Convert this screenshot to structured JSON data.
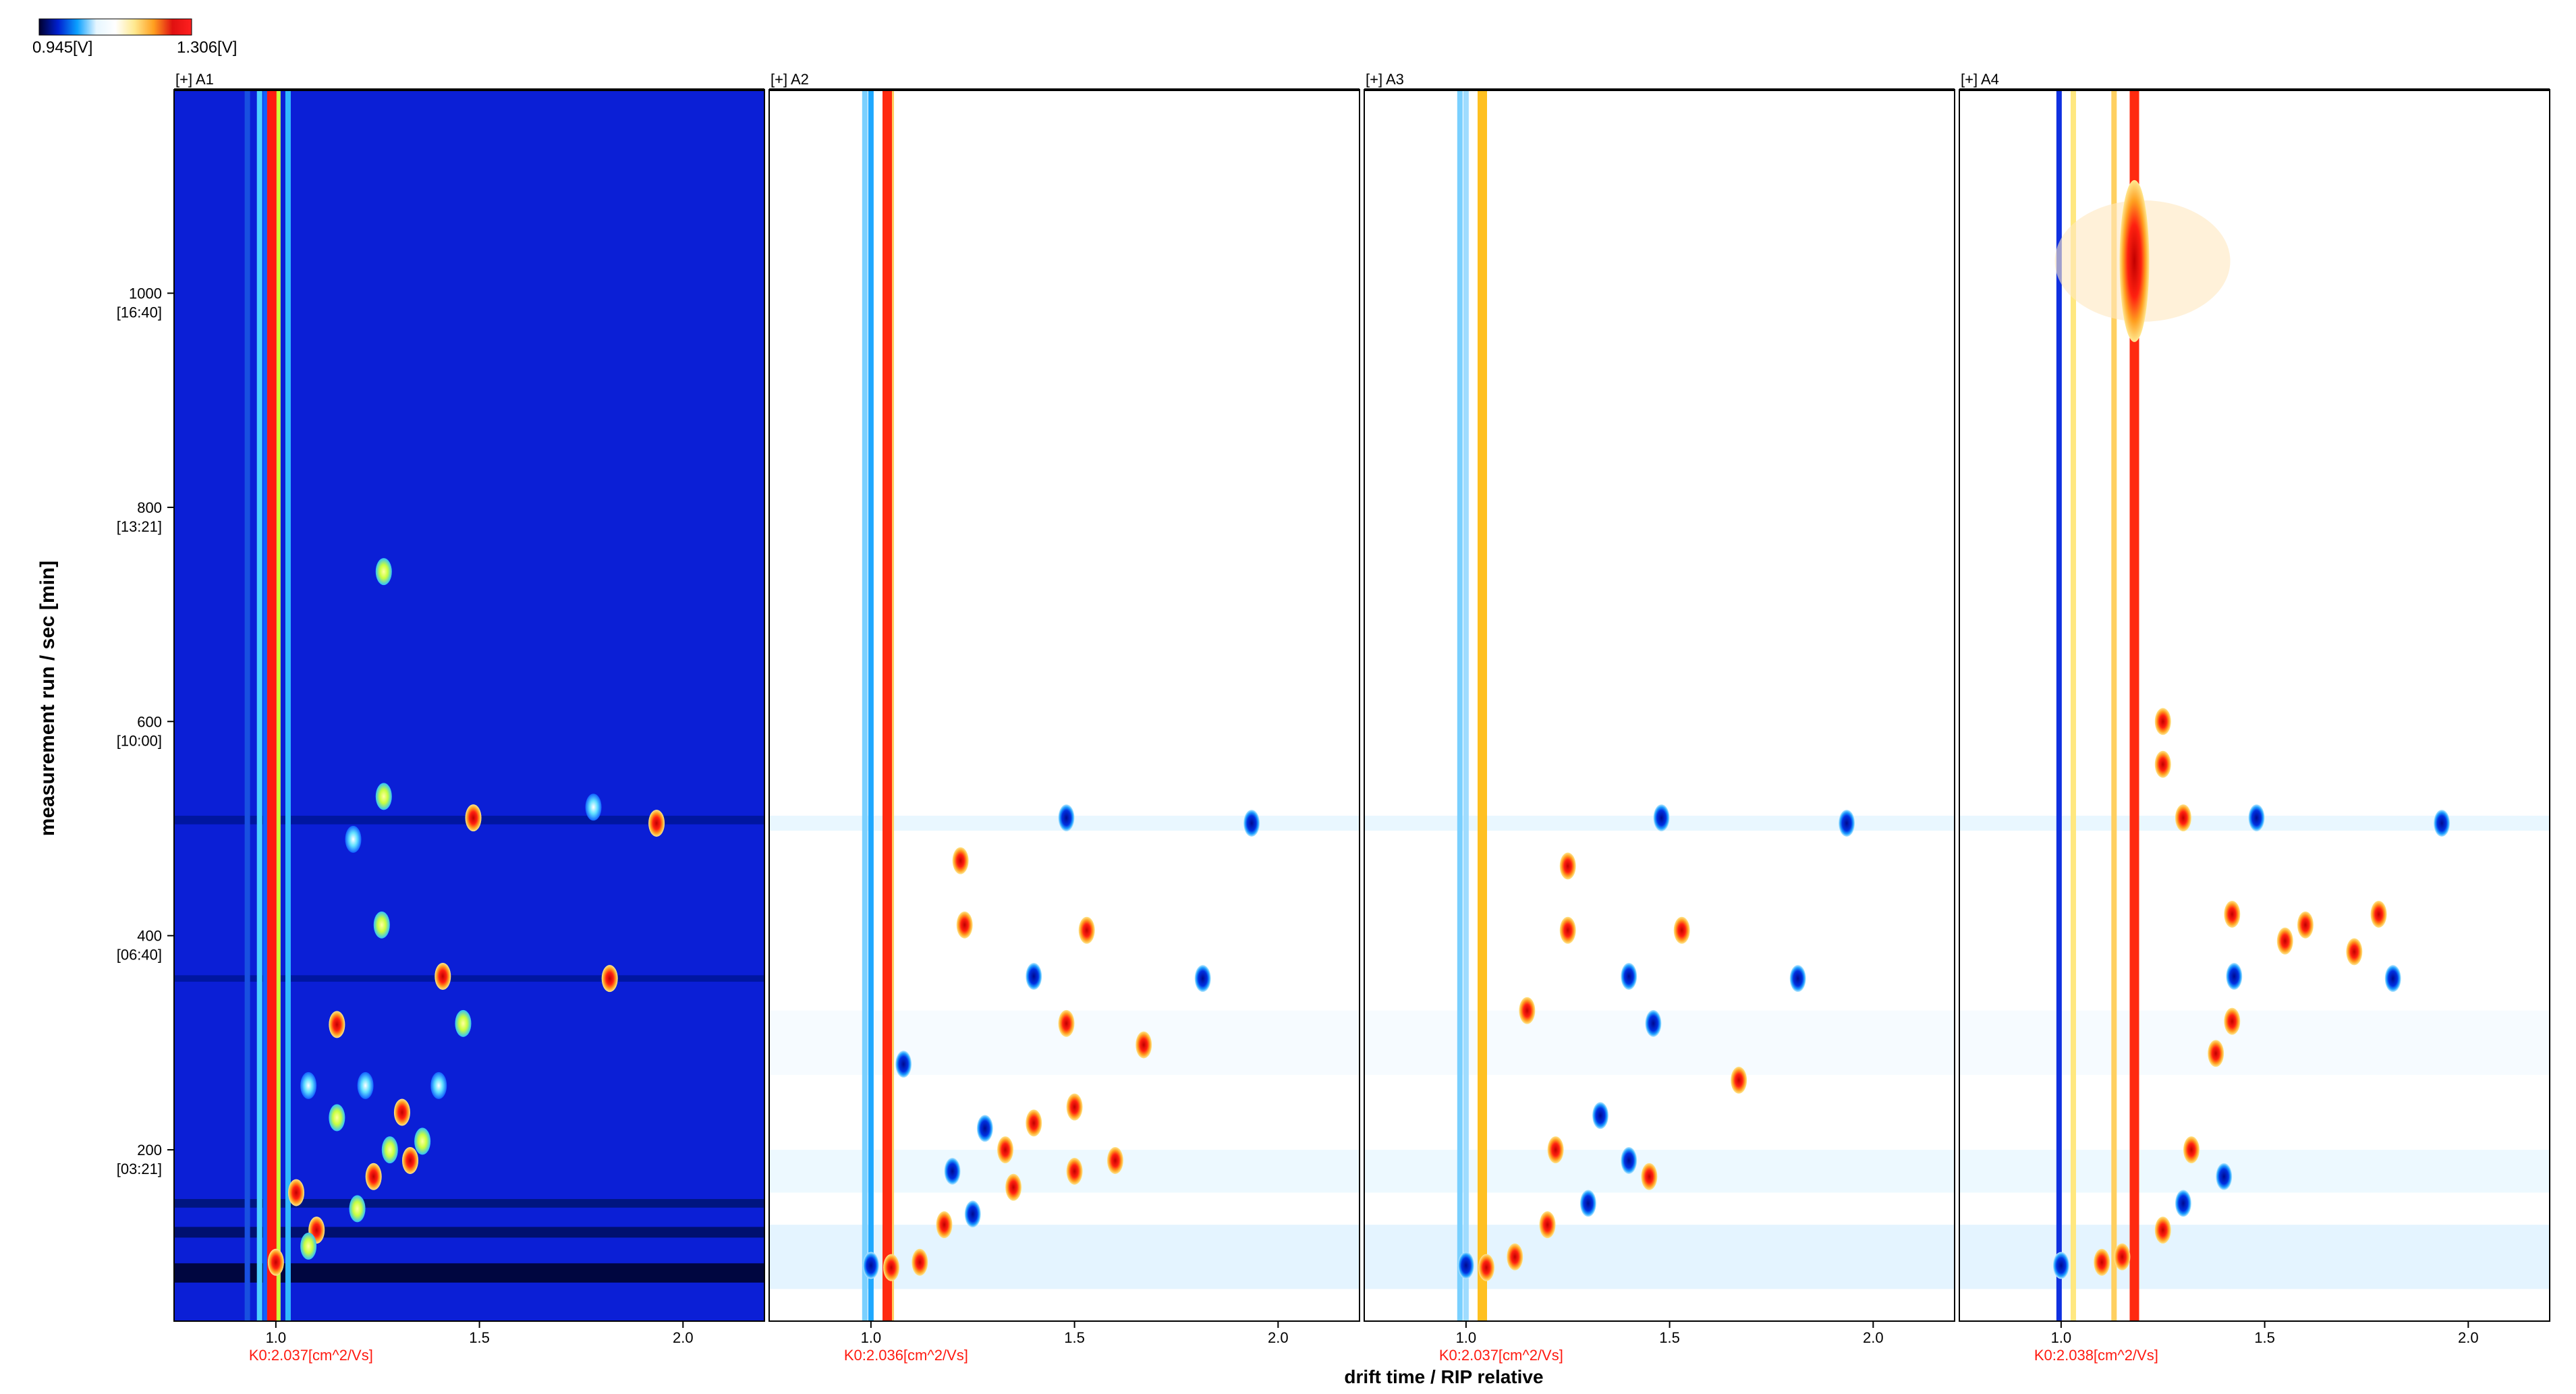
{
  "colorbar": {
    "min_label": "0.945[V]",
    "max_label": "1.306[V]",
    "stops": [
      "#00002e",
      "#0020d0",
      "#0aa0ff",
      "#e6f6ff",
      "#ffffff",
      "#ffe990",
      "#ffa020",
      "#e01010",
      "#ff2020"
    ]
  },
  "chart_data": {
    "type": "heatmap",
    "xlabel": "drift time / RIP relative",
    "ylabel": "measurement run / sec [min]",
    "xlim": [
      0.75,
      2.2
    ],
    "ylim": [
      40,
      1190
    ],
    "x_ticks": [
      {
        "value": 1.0,
        "label": "1.0"
      },
      {
        "value": 1.5,
        "label": "1.5"
      },
      {
        "value": 2.0,
        "label": "2.0"
      }
    ],
    "y_ticks": [
      {
        "value": 200,
        "label": "200",
        "sub": "[03:21]"
      },
      {
        "value": 400,
        "label": "400",
        "sub": "[06:40]"
      },
      {
        "value": 600,
        "label": "600",
        "sub": "[10:00]"
      },
      {
        "value": 800,
        "label": "800",
        "sub": "[13:21]"
      },
      {
        "value": 1000,
        "label": "1000",
        "sub": "[16:40]"
      }
    ],
    "panels": [
      {
        "name": "[+] A1",
        "k0_label": "K0:2.037[cm^2/Vs]",
        "mode": "raw",
        "background": "#0b1fd6",
        "rip_x": 0.99,
        "rip_color": "#ff1a10",
        "lines": [
          {
            "x": 0.96,
            "color": "#4fd0ff"
          },
          {
            "x": 0.975,
            "color": "#1060ff"
          },
          {
            "x": 1.005,
            "color": "#c8ff40"
          },
          {
            "x": 1.03,
            "color": "#30b8ff"
          },
          {
            "x": 0.93,
            "color": "#1850e0"
          }
        ],
        "bands": [
          {
            "y": 85,
            "h": 18,
            "color": "#000640"
          },
          {
            "y": 123,
            "h": 10,
            "color": "#001070"
          },
          {
            "y": 150,
            "h": 8,
            "color": "#001580"
          },
          {
            "y": 508,
            "h": 8,
            "color": "#0016a0"
          },
          {
            "y": 360,
            "h": 6,
            "color": "#0016a0"
          }
        ],
        "spots": [
          {
            "x": 1.935,
            "y": 505,
            "c": "red"
          },
          {
            "x": 1.485,
            "y": 510,
            "c": "red"
          },
          {
            "x": 1.265,
            "y": 530,
            "c": "yellow"
          },
          {
            "x": 1.78,
            "y": 520,
            "c": "cyan"
          },
          {
            "x": 1.82,
            "y": 360,
            "c": "red"
          },
          {
            "x": 1.41,
            "y": 362,
            "c": "red"
          },
          {
            "x": 1.46,
            "y": 318,
            "c": "yellow"
          },
          {
            "x": 1.15,
            "y": 317,
            "c": "red"
          },
          {
            "x": 1.265,
            "y": 740,
            "c": "yellow"
          },
          {
            "x": 1.26,
            "y": 410,
            "c": "yellow"
          },
          {
            "x": 1.19,
            "y": 490,
            "c": "cyan"
          },
          {
            "x": 1.31,
            "y": 235,
            "c": "red"
          },
          {
            "x": 1.28,
            "y": 200,
            "c": "yellow"
          },
          {
            "x": 1.33,
            "y": 190,
            "c": "red"
          },
          {
            "x": 1.36,
            "y": 208,
            "c": "yellow"
          },
          {
            "x": 1.24,
            "y": 175,
            "c": "red"
          },
          {
            "x": 1.2,
            "y": 145,
            "c": "yellow"
          },
          {
            "x": 1.1,
            "y": 125,
            "c": "red"
          },
          {
            "x": 1.08,
            "y": 110,
            "c": "yellow"
          },
          {
            "x": 1.0,
            "y": 95,
            "c": "red"
          },
          {
            "x": 1.15,
            "y": 230,
            "c": "yellow"
          },
          {
            "x": 1.05,
            "y": 160,
            "c": "red"
          },
          {
            "x": 1.08,
            "y": 260,
            "c": "cyan"
          },
          {
            "x": 1.22,
            "y": 260,
            "c": "cyan"
          },
          {
            "x": 1.4,
            "y": 260,
            "c": "cyan"
          }
        ]
      },
      {
        "name": "[+] A2",
        "k0_label": "K0:2.036[cm^2/Vs]",
        "mode": "diff",
        "background": "#ffffff",
        "rip_x": 1.04,
        "rip_color": "#ff2a10",
        "lines": [
          {
            "x": 1.0,
            "color": "#1ea8ff"
          },
          {
            "x": 0.985,
            "color": "#7ad0ff"
          },
          {
            "x": 1.05,
            "color": "#ffd060"
          }
        ],
        "bands": [],
        "spots": [
          {
            "x": 1.935,
            "y": 505,
            "c": "blue"
          },
          {
            "x": 1.48,
            "y": 510,
            "c": "blue"
          },
          {
            "x": 1.815,
            "y": 360,
            "c": "blue"
          },
          {
            "x": 1.4,
            "y": 362,
            "c": "blue"
          },
          {
            "x": 1.53,
            "y": 405,
            "c": "red"
          },
          {
            "x": 1.23,
            "y": 410,
            "c": "red"
          },
          {
            "x": 1.67,
            "y": 298,
            "c": "red"
          },
          {
            "x": 1.48,
            "y": 318,
            "c": "red"
          },
          {
            "x": 1.5,
            "y": 240,
            "c": "red"
          },
          {
            "x": 1.4,
            "y": 225,
            "c": "red"
          },
          {
            "x": 1.6,
            "y": 190,
            "c": "red"
          },
          {
            "x": 1.5,
            "y": 180,
            "c": "red"
          },
          {
            "x": 1.35,
            "y": 165,
            "c": "red"
          },
          {
            "x": 1.25,
            "y": 140,
            "c": "blue"
          },
          {
            "x": 1.18,
            "y": 130,
            "c": "red"
          },
          {
            "x": 1.12,
            "y": 95,
            "c": "red"
          },
          {
            "x": 1.05,
            "y": 90,
            "c": "red"
          },
          {
            "x": 1.0,
            "y": 92,
            "c": "blue"
          },
          {
            "x": 1.08,
            "y": 280,
            "c": "blue"
          },
          {
            "x": 1.2,
            "y": 180,
            "c": "blue"
          },
          {
            "x": 1.28,
            "y": 220,
            "c": "blue"
          },
          {
            "x": 1.33,
            "y": 200,
            "c": "red"
          },
          {
            "x": 1.22,
            "y": 470,
            "c": "red"
          }
        ]
      },
      {
        "name": "[+] A3",
        "k0_label": "K0:2.037[cm^2/Vs]",
        "mode": "diff",
        "background": "#ffffff",
        "rip_x": 1.04,
        "rip_color": "#ffc020",
        "lines": [
          {
            "x": 0.985,
            "color": "#7ad0ff"
          },
          {
            "x": 1.0,
            "color": "#9fdcff"
          }
        ],
        "bands": [],
        "spots": [
          {
            "x": 1.935,
            "y": 505,
            "c": "blue"
          },
          {
            "x": 1.48,
            "y": 510,
            "c": "blue"
          },
          {
            "x": 1.815,
            "y": 360,
            "c": "blue"
          },
          {
            "x": 1.4,
            "y": 362,
            "c": "blue"
          },
          {
            "x": 1.53,
            "y": 405,
            "c": "red"
          },
          {
            "x": 1.25,
            "y": 405,
            "c": "red"
          },
          {
            "x": 1.25,
            "y": 465,
            "c": "red"
          },
          {
            "x": 1.67,
            "y": 265,
            "c": "red"
          },
          {
            "x": 1.46,
            "y": 318,
            "c": "blue"
          },
          {
            "x": 1.33,
            "y": 232,
            "c": "blue"
          },
          {
            "x": 1.4,
            "y": 190,
            "c": "blue"
          },
          {
            "x": 1.45,
            "y": 175,
            "c": "red"
          },
          {
            "x": 1.3,
            "y": 150,
            "c": "blue"
          },
          {
            "x": 1.2,
            "y": 130,
            "c": "red"
          },
          {
            "x": 1.12,
            "y": 100,
            "c": "red"
          },
          {
            "x": 1.05,
            "y": 90,
            "c": "red"
          },
          {
            "x": 1.0,
            "y": 92,
            "c": "blue"
          },
          {
            "x": 1.15,
            "y": 330,
            "c": "red"
          },
          {
            "x": 1.22,
            "y": 200,
            "c": "red"
          }
        ]
      },
      {
        "name": "[+] A4",
        "k0_label": "K0:2.038[cm^2/Vs]",
        "mode": "diff",
        "background": "#ffffff",
        "rip_x": 1.18,
        "rip_color": "#ff2a10",
        "lines": [
          {
            "x": 0.995,
            "color": "#0f30e0"
          },
          {
            "x": 1.03,
            "color": "#ffe880"
          },
          {
            "x": 1.13,
            "color": "#ffd060"
          }
        ],
        "bands": [],
        "spots": [
          {
            "x": 1.935,
            "y": 505,
            "c": "blue"
          },
          {
            "x": 1.48,
            "y": 510,
            "c": "blue"
          },
          {
            "x": 1.815,
            "y": 360,
            "c": "blue"
          },
          {
            "x": 1.425,
            "y": 362,
            "c": "blue"
          },
          {
            "x": 1.72,
            "y": 385,
            "c": "red"
          },
          {
            "x": 1.78,
            "y": 420,
            "c": "red"
          },
          {
            "x": 1.55,
            "y": 395,
            "c": "red"
          },
          {
            "x": 1.6,
            "y": 410,
            "c": "red"
          },
          {
            "x": 1.42,
            "y": 420,
            "c": "red"
          },
          {
            "x": 1.3,
            "y": 510,
            "c": "red"
          },
          {
            "x": 1.25,
            "y": 560,
            "c": "red"
          },
          {
            "x": 1.38,
            "y": 290,
            "c": "red"
          },
          {
            "x": 1.42,
            "y": 320,
            "c": "red"
          },
          {
            "x": 1.32,
            "y": 200,
            "c": "red"
          },
          {
            "x": 1.3,
            "y": 150,
            "c": "blue"
          },
          {
            "x": 1.25,
            "y": 125,
            "c": "red"
          },
          {
            "x": 1.15,
            "y": 100,
            "c": "red"
          },
          {
            "x": 1.1,
            "y": 95,
            "c": "red"
          },
          {
            "x": 1.0,
            "y": 92,
            "c": "blue"
          },
          {
            "x": 1.4,
            "y": 175,
            "c": "blue"
          },
          {
            "x": 1.25,
            "y": 600,
            "c": "red"
          }
        ]
      }
    ]
  }
}
